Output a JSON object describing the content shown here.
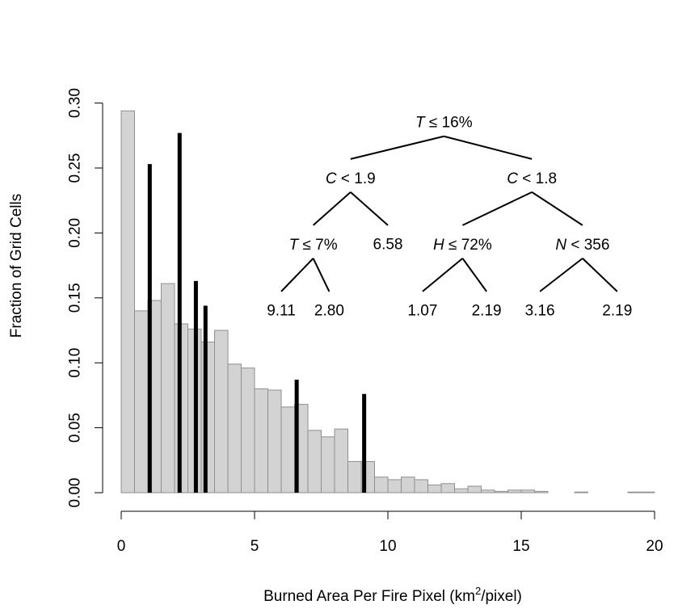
{
  "chart_data": {
    "type": "bar",
    "xlabel_main": "Burned Area Per Fire Pixel (km",
    "xlabel_sup": "2",
    "xlabel_tail": "/pixel)",
    "ylabel": "Fraction of Grid Cells",
    "xlim": [
      0,
      20.5
    ],
    "ylim": [
      0,
      0.3
    ],
    "x_ticks": [
      0,
      5,
      10,
      15,
      20
    ],
    "x_tick_labels": [
      "0",
      "5",
      "10",
      "15",
      "20"
    ],
    "y_ticks": [
      0,
      0.05,
      0.1,
      0.15,
      0.2,
      0.25,
      0.3
    ],
    "y_tick_labels": [
      "0.00",
      "0.05",
      "0.10",
      "0.15",
      "0.20",
      "0.25",
      "0.30"
    ],
    "histogram": {
      "bin_width": 0.5,
      "bin_starts": [
        0,
        0.5,
        1,
        1.5,
        2,
        2.5,
        3,
        3.5,
        4,
        4.5,
        5,
        5.5,
        6,
        6.5,
        7,
        7.5,
        8,
        8.5,
        9,
        9.5,
        10,
        10.5,
        11,
        11.5,
        12,
        12.5,
        13,
        13.5,
        14,
        14.5,
        15,
        15.5,
        16,
        16.5,
        17,
        17.5,
        18,
        18.5,
        19,
        19.5
      ],
      "values": [
        0.294,
        0.14,
        0.148,
        0.161,
        0.13,
        0.126,
        0.116,
        0.125,
        0.099,
        0.096,
        0.08,
        0.079,
        0.066,
        0.068,
        0.048,
        0.043,
        0.049,
        0.024,
        0.024,
        0.012,
        0.01,
        0.012,
        0.01,
        0.006,
        0.007,
        0.003,
        0.005,
        0.002,
        0.001,
        0.002,
        0.002,
        0.001,
        0.0,
        0.0,
        0.0005,
        0.0,
        0.0,
        0.0,
        0.0005,
        0.0005
      ]
    },
    "leaf_bars": {
      "x": [
        1.07,
        2.19,
        2.8,
        3.16,
        6.58,
        9.11
      ],
      "values": [
        0.253,
        0.277,
        0.163,
        0.144,
        0.087,
        0.076
      ]
    },
    "tree": {
      "nodes": [
        {
          "id": "root",
          "var": "T",
          "op": "≤",
          "val": "16%",
          "x": 12.1,
          "y": 0.285
        },
        {
          "id": "L",
          "var": "C",
          "op": "<",
          "val": "1.9",
          "x": 8.6,
          "y": 0.242
        },
        {
          "id": "R",
          "var": "C",
          "op": "<",
          "val": "1.8",
          "x": 15.4,
          "y": 0.242
        },
        {
          "id": "LL",
          "var": "T",
          "op": "≤",
          "val": "7%",
          "x": 7.2,
          "y": 0.191
        },
        {
          "id": "LR",
          "text": "6.58",
          "x": 10.0,
          "y": 0.191
        },
        {
          "id": "RL",
          "var": "H",
          "op": "≤",
          "val": "72%",
          "x": 12.8,
          "y": 0.191
        },
        {
          "id": "RR",
          "var": "N",
          "op": "<",
          "val": "356",
          "x": 17.3,
          "y": 0.191
        },
        {
          "id": "LLL",
          "text": "9.11",
          "x": 6.0,
          "y": 0.14
        },
        {
          "id": "LLR",
          "text": "2.80",
          "x": 7.8,
          "y": 0.14
        },
        {
          "id": "RLL",
          "text": "1.07",
          "x": 11.3,
          "y": 0.14
        },
        {
          "id": "RLR",
          "text": "2.19",
          "x": 13.7,
          "y": 0.14
        },
        {
          "id": "RRL",
          "text": "3.16",
          "x": 15.7,
          "y": 0.14
        },
        {
          "id": "RRR",
          "text": "2.19",
          "x": 18.6,
          "y": 0.14
        }
      ],
      "edges": [
        [
          "root",
          "L"
        ],
        [
          "root",
          "R"
        ],
        [
          "L",
          "LL"
        ],
        [
          "L",
          "LR"
        ],
        [
          "R",
          "RL"
        ],
        [
          "R",
          "RR"
        ],
        [
          "LL",
          "LLL"
        ],
        [
          "LL",
          "LLR"
        ],
        [
          "RL",
          "RLL"
        ],
        [
          "RL",
          "RLR"
        ],
        [
          "RR",
          "RRL"
        ],
        [
          "RR",
          "RRR"
        ]
      ]
    }
  }
}
